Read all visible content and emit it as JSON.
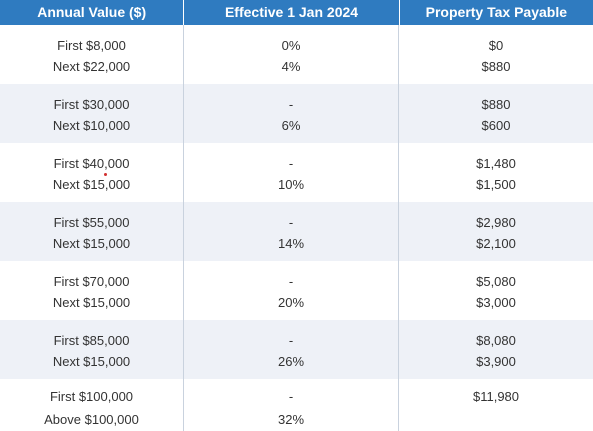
{
  "headers": [
    "Annual Value ($)",
    "Effective 1 Jan 2024",
    "Property Tax Payable"
  ],
  "rows": [
    {
      "annual_value": [
        "First $8,000",
        "Next $22,000"
      ],
      "rate": [
        "0%",
        "4%"
      ],
      "tax": [
        "$0",
        "$880"
      ]
    },
    {
      "annual_value": [
        "First $30,000",
        "Next $10,000"
      ],
      "rate": [
        "-",
        "6%"
      ],
      "tax": [
        "$880",
        "$600"
      ]
    },
    {
      "annual_value": [
        "First $40,000",
        "Next $15,000"
      ],
      "rate": [
        "-",
        "10%"
      ],
      "tax": [
        "$1,480",
        "$1,500"
      ]
    },
    {
      "annual_value": [
        "First $55,000",
        "Next $15,000"
      ],
      "rate": [
        "-",
        "14%"
      ],
      "tax": [
        "$2,980",
        "$2,100"
      ]
    },
    {
      "annual_value": [
        "First $70,000",
        "Next $15,000"
      ],
      "rate": [
        "-",
        "20%"
      ],
      "tax": [
        "$5,080",
        "$3,000"
      ]
    },
    {
      "annual_value": [
        "First $85,000",
        "Next $15,000"
      ],
      "rate": [
        "-",
        "26%"
      ],
      "tax": [
        "$8,080",
        "$3,900"
      ]
    },
    {
      "annual_value": [
        "First $100,000",
        "Above $100,000"
      ],
      "rate": [
        "-",
        "32%"
      ],
      "tax": [
        "$11,980",
        ""
      ]
    }
  ]
}
